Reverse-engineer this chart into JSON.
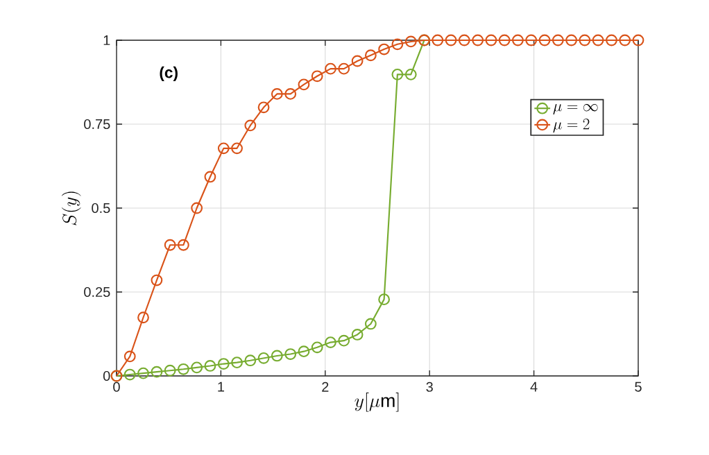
{
  "chart_data": {
    "type": "line",
    "xlabel": "y[\\mu \\mathrm{m}]",
    "ylabel": "S(y)",
    "annotations": [
      "(c)"
    ],
    "x": [
      0,
      0.128,
      0.256,
      0.385,
      0.513,
      0.641,
      0.769,
      0.897,
      1.026,
      1.154,
      1.282,
      1.41,
      1.538,
      1.667,
      1.795,
      1.923,
      2.051,
      2.179,
      2.308,
      2.436,
      2.564,
      2.692,
      2.821,
      2.949,
      3.077,
      3.205,
      3.333,
      3.462,
      3.59,
      3.718,
      3.846,
      3.974,
      4.103,
      4.231,
      4.359,
      4.487,
      4.615,
      4.744,
      4.872,
      5
    ],
    "series": [
      {
        "name": "\\mu = \\infty",
        "color": "#77ac30",
        "values": [
          0,
          0.004,
          0.008,
          0.012,
          0.016,
          0.02,
          0.025,
          0.03,
          0.036,
          0.04,
          0.046,
          0.053,
          0.06,
          0.065,
          0.073,
          0.085,
          0.1,
          0.105,
          0.123,
          0.155,
          0.228,
          0.898,
          0.898,
          1,
          null,
          null,
          null,
          null,
          null,
          null,
          null,
          null,
          null,
          null,
          null,
          null,
          null,
          null,
          null,
          null
        ]
      },
      {
        "name": "\\mu = 2",
        "color": "#d95319",
        "values": [
          0,
          0.058,
          0.174,
          0.285,
          0.39,
          0.39,
          0.5,
          0.593,
          0.678,
          0.678,
          0.746,
          0.8,
          0.84,
          0.84,
          0.868,
          0.893,
          0.915,
          0.915,
          0.938,
          0.955,
          0.973,
          0.988,
          0.996,
          1,
          1,
          1,
          1,
          1,
          1,
          1,
          1,
          1,
          1,
          1,
          1,
          1,
          1,
          1,
          1,
          1
        ]
      }
    ],
    "xlim": [
      0,
      5
    ],
    "ylim": [
      0,
      1
    ],
    "xticks": [
      0,
      1,
      2,
      3,
      4,
      5
    ],
    "yticks": [
      0,
      0.25,
      0.5,
      0.75,
      1
    ],
    "grid": true,
    "legend": "top right",
    "marker": "circle",
    "line_style": "solid"
  }
}
